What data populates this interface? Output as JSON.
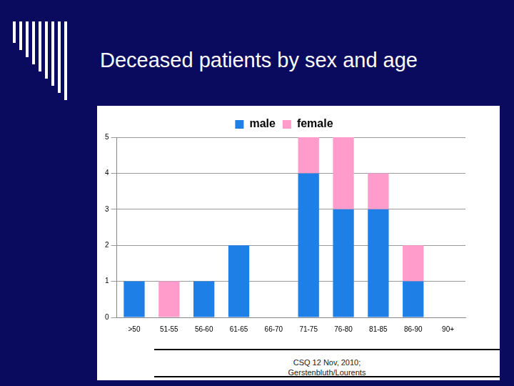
{
  "chart_data": {
    "type": "bar",
    "title": "Deceased patients by sex and age",
    "categories": [
      ">50",
      "51-55",
      "56-60",
      "61-65",
      "66-70",
      "71-75",
      "76-80",
      "81-85",
      "86-90",
      "90+"
    ],
    "series": [
      {
        "name": "male",
        "color": "#1e7fe6",
        "values": [
          1,
          0,
          1,
          2,
          0,
          4,
          3,
          3,
          1,
          0
        ]
      },
      {
        "name": "female",
        "color": "#ff9ccc",
        "values": [
          0,
          1,
          0,
          0,
          0,
          1,
          2,
          1,
          1,
          0
        ]
      }
    ],
    "ylim": [
      0,
      5
    ],
    "yticks": [
      0,
      1,
      2,
      3,
      4,
      5
    ],
    "grid": true,
    "stacked": true,
    "legend": "top",
    "footer": [
      "CSQ 12 Nov, 2010;",
      "Gerstenbluth/Lourents"
    ]
  }
}
